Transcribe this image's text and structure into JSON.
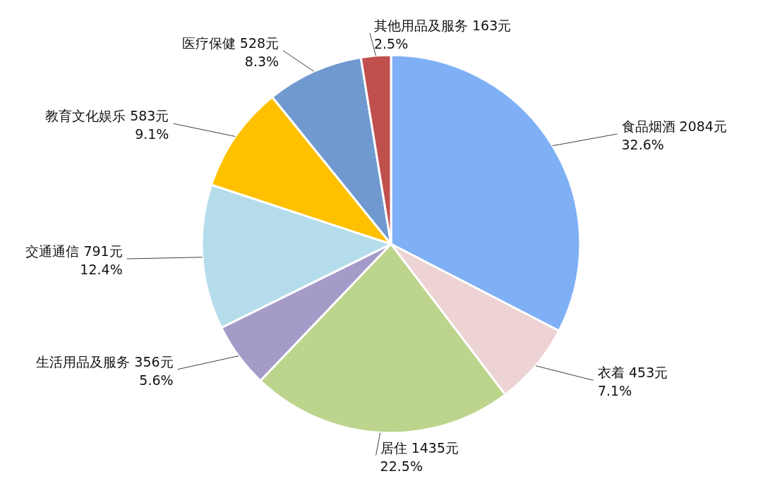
{
  "chart_data": {
    "type": "pie",
    "categories": [
      "食品烟酒",
      "衣着",
      "居住",
      "生活用品及服务",
      "交通通信",
      "教育文化娱乐",
      "医疗保健",
      "其他用品及服务"
    ],
    "values": [
      2084,
      453,
      1435,
      356,
      791,
      583,
      528,
      163
    ],
    "value_labels": [
      "2084元\n32.6%",
      "453元\n7.1%",
      "1435元\n22.5%",
      "356元\n5.6%",
      "791元\n12.4%",
      "583元\n9.1%",
      "528元\n8.3%",
      "163元\n2.5%"
    ],
    "colors": [
      "#7fb0f5",
      "#edd3d3",
      "#bcd48c",
      "#a59bc8",
      "#b5dcea",
      "#ffc000",
      "#7099cf",
      "#c0504d"
    ]
  }
}
